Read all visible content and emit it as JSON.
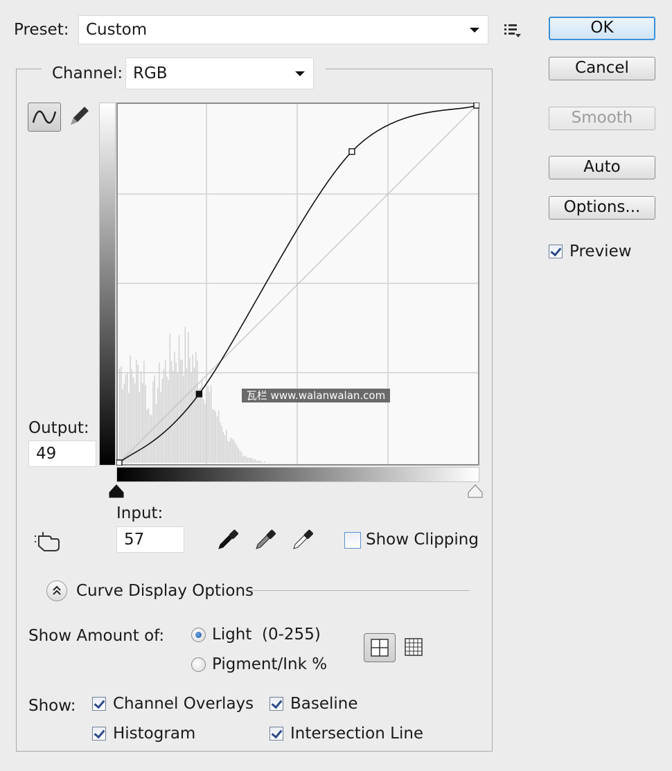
{
  "preset": {
    "label": "Preset:",
    "value": "Custom"
  },
  "channel": {
    "label": "Channel:",
    "value": "RGB"
  },
  "buttons": {
    "ok": "OK",
    "cancel": "Cancel",
    "smooth": "Smooth",
    "auto": "Auto",
    "options": "Options..."
  },
  "preview": {
    "label": "Preview",
    "checked": true
  },
  "output": {
    "label": "Output:",
    "value": "49"
  },
  "input": {
    "label": "Input:",
    "value": "57"
  },
  "show_clipping": {
    "label": "Show Clipping",
    "checked": false
  },
  "curve_display_options": {
    "label": "Curve Display Options"
  },
  "show_amount": {
    "label": "Show Amount of:",
    "light": "Light  (0-255)",
    "pigment": "Pigment/Ink %",
    "selected": "light"
  },
  "show": {
    "label": "Show:",
    "channel_overlays": "Channel Overlays",
    "baseline": "Baseline",
    "histogram": "Histogram",
    "intersection_line": "Intersection Line"
  },
  "curve_points": [
    [
      0,
      0
    ],
    [
      57,
      49
    ],
    [
      166,
      222
    ],
    [
      255,
      255
    ]
  ],
  "watermark": "瓦栏 www.walanwalan.com",
  "colors": {
    "accent": "#3d8fd6",
    "background": "#ececec"
  }
}
